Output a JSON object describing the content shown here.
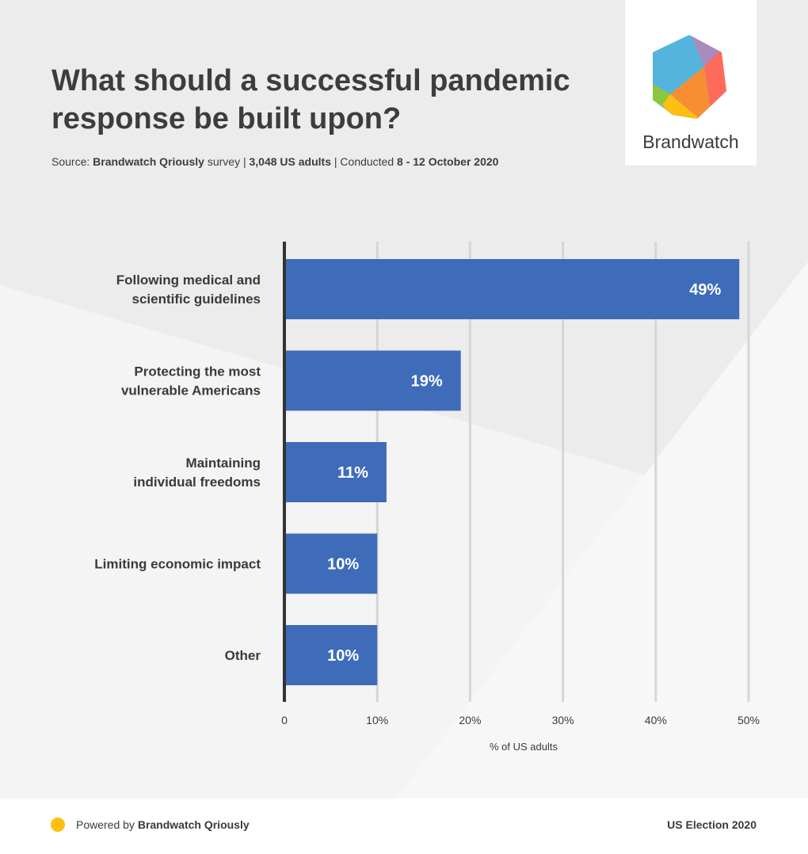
{
  "header": {
    "title": "What should a successful pandemic response be built upon?",
    "source": {
      "prefix": "Source: ",
      "brand": "Brandwatch Qriously",
      "survey": " survey |  ",
      "sample": "3,048 US adults",
      "conducted": " | Conducted ",
      "dates": "8 - 12 October 2020"
    },
    "logo_text": "Brandwatch"
  },
  "colors": {
    "bar": "#3f6cb9",
    "background": "#ececec",
    "grid": "#d6d6d6",
    "axis": "#333333",
    "accent": "#fdbf11"
  },
  "chart_data": {
    "type": "bar",
    "orientation": "horizontal",
    "categories": [
      [
        "Following medical and",
        "scientific guidelines"
      ],
      [
        "Protecting the most",
        "vulnerable Americans"
      ],
      [
        "Maintaining",
        "individual freedoms"
      ],
      [
        "Limiting economic impact"
      ],
      [
        "Other"
      ]
    ],
    "values": [
      49,
      19,
      11,
      10,
      10
    ],
    "data_labels": [
      "49%",
      "19%",
      "11%",
      "10%",
      "10%"
    ],
    "xlabel": "% of US adults",
    "xlim": [
      0,
      50
    ],
    "xticks": [
      0,
      10,
      20,
      30,
      40,
      50
    ],
    "xtick_labels": [
      "0",
      "10%",
      "20%",
      "30%",
      "40%",
      "50%"
    ],
    "grid": true
  },
  "footer": {
    "powered_prefix": "Powered by ",
    "powered_brand": "Brandwatch Qriously",
    "edition": "US Election 2020"
  }
}
